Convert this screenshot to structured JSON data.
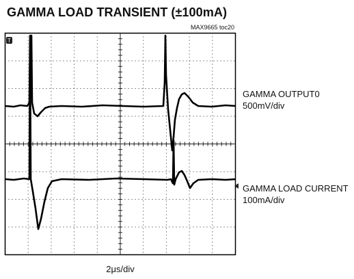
{
  "title": "GAMMA LOAD TRANSIENT (±100mA)",
  "note": "MAX9665 toc20",
  "traces": [
    {
      "label": "GAMMA OUTPUT0",
      "scale": "500mV/div"
    },
    {
      "label": "GAMMA LOAD CURRENT",
      "scale": "100mA/div"
    }
  ],
  "x_scale": "2μs/div"
}
